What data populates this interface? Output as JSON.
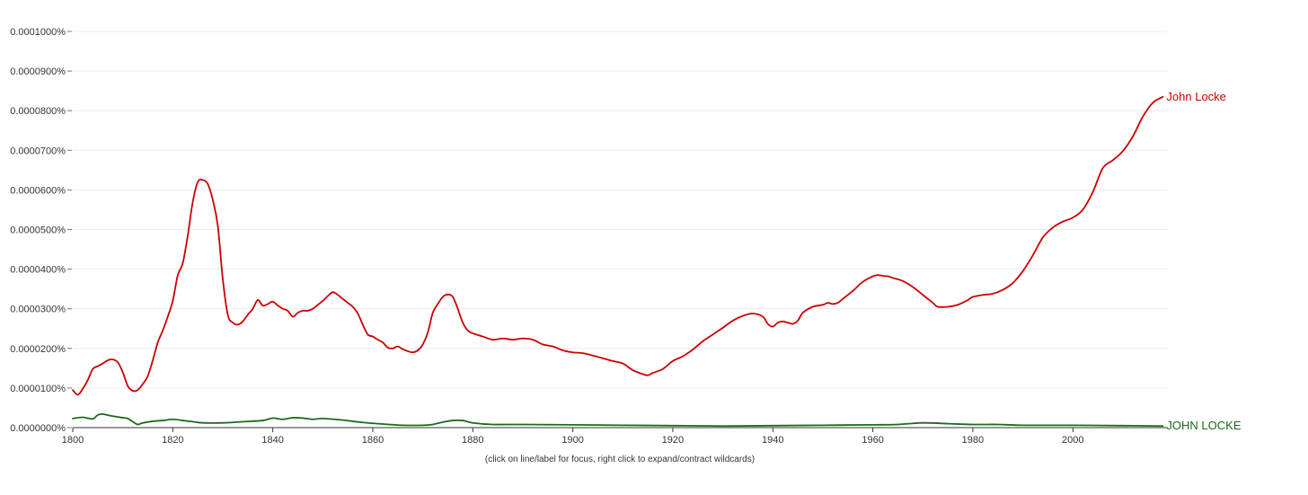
{
  "chart_data": {
    "type": "line",
    "title": "",
    "xlabel": "",
    "ylabel": "",
    "xlim": [
      1800,
      2019
    ],
    "ylim": [
      0,
      1e-06
    ],
    "x_ticks": [
      1800,
      1820,
      1840,
      1860,
      1880,
      1900,
      1920,
      1940,
      1960,
      1980,
      2000
    ],
    "y_ticks": [
      0,
      1e-07,
      2e-07,
      3e-07,
      4e-07,
      5e-07,
      6e-07,
      7e-07,
      8e-07,
      9e-07,
      1e-06
    ],
    "y_tick_labels": [
      "0.0000000%",
      "0.0000100%",
      "0.0000200%",
      "0.0000300%",
      "0.0000400%",
      "0.0000500%",
      "0.0000600%",
      "0.0000700%",
      "0.0000800%",
      "0.0000900%",
      "0.0001000%"
    ],
    "grid": true,
    "legend": "labels at line ends (right)",
    "note": "(click on line/label for focus, right click to expand/contract wildcards)",
    "series": [
      {
        "name": "John Locke",
        "color": "#cc0000",
        "points": [
          [
            1800,
            9.5e-08
          ],
          [
            1801,
            8.3e-08
          ],
          [
            1802,
            9.8e-08
          ],
          [
            1803,
            1.2e-07
          ],
          [
            1804,
            1.48e-07
          ],
          [
            1805,
            1.55e-07
          ],
          [
            1806,
            1.62e-07
          ],
          [
            1807,
            1.7e-07
          ],
          [
            1808,
            1.72e-07
          ],
          [
            1809,
            1.65e-07
          ],
          [
            1810,
            1.4e-07
          ],
          [
            1811,
            1.05e-07
          ],
          [
            1812,
            9.3e-08
          ],
          [
            1813,
            9.5e-08
          ],
          [
            1814,
            1.1e-07
          ],
          [
            1815,
            1.3e-07
          ],
          [
            1816,
            1.7e-07
          ],
          [
            1817,
            2.15e-07
          ],
          [
            1818,
            2.45e-07
          ],
          [
            1819,
            2.8e-07
          ],
          [
            1820,
            3.2e-07
          ],
          [
            1821,
            3.85e-07
          ],
          [
            1822,
            4.15e-07
          ],
          [
            1823,
            4.85e-07
          ],
          [
            1824,
            5.7e-07
          ],
          [
            1825,
            6.2e-07
          ],
          [
            1826,
            6.25e-07
          ],
          [
            1827,
            6.15e-07
          ],
          [
            1828,
            5.75e-07
          ],
          [
            1829,
            5.1e-07
          ],
          [
            1830,
            3.75e-07
          ],
          [
            1831,
            2.85e-07
          ],
          [
            1832,
            2.65e-07
          ],
          [
            1833,
            2.6e-07
          ],
          [
            1834,
            2.68e-07
          ],
          [
            1835,
            2.85e-07
          ],
          [
            1836,
            3e-07
          ],
          [
            1837,
            3.22e-07
          ],
          [
            1838,
            3.08e-07
          ],
          [
            1839,
            3.12e-07
          ],
          [
            1840,
            3.18e-07
          ],
          [
            1841,
            3.08e-07
          ],
          [
            1842,
            3e-07
          ],
          [
            1843,
            2.95e-07
          ],
          [
            1844,
            2.8e-07
          ],
          [
            1845,
            2.9e-07
          ],
          [
            1846,
            2.95e-07
          ],
          [
            1847,
            2.95e-07
          ],
          [
            1848,
            3e-07
          ],
          [
            1849,
            3.1e-07
          ],
          [
            1850,
            3.2e-07
          ],
          [
            1851,
            3.32e-07
          ],
          [
            1852,
            3.42e-07
          ],
          [
            1853,
            3.35e-07
          ],
          [
            1854,
            3.25e-07
          ],
          [
            1855,
            3.15e-07
          ],
          [
            1856,
            3.05e-07
          ],
          [
            1857,
            2.88e-07
          ],
          [
            1858,
            2.6e-07
          ],
          [
            1859,
            2.35e-07
          ],
          [
            1860,
            2.3e-07
          ],
          [
            1861,
            2.22e-07
          ],
          [
            1862,
            2.15e-07
          ],
          [
            1863,
            2.02e-07
          ],
          [
            1864,
            2e-07
          ],
          [
            1865,
            2.05e-07
          ],
          [
            1866,
            1.98e-07
          ],
          [
            1867,
            1.93e-07
          ],
          [
            1868,
            1.9e-07
          ],
          [
            1869,
            1.95e-07
          ],
          [
            1870,
            2.1e-07
          ],
          [
            1871,
            2.4e-07
          ],
          [
            1872,
            2.9e-07
          ],
          [
            1873,
            3.12e-07
          ],
          [
            1874,
            3.3e-07
          ],
          [
            1875,
            3.36e-07
          ],
          [
            1876,
            3.3e-07
          ],
          [
            1877,
            3e-07
          ],
          [
            1878,
            2.65e-07
          ],
          [
            1879,
            2.45e-07
          ],
          [
            1880,
            2.38e-07
          ],
          [
            1882,
            2.3e-07
          ],
          [
            1884,
            2.22e-07
          ],
          [
            1886,
            2.25e-07
          ],
          [
            1888,
            2.22e-07
          ],
          [
            1890,
            2.25e-07
          ],
          [
            1892,
            2.22e-07
          ],
          [
            1894,
            2.1e-07
          ],
          [
            1896,
            2.05e-07
          ],
          [
            1898,
            1.95e-07
          ],
          [
            1900,
            1.9e-07
          ],
          [
            1902,
            1.88e-07
          ],
          [
            1904,
            1.82e-07
          ],
          [
            1906,
            1.75e-07
          ],
          [
            1908,
            1.68e-07
          ],
          [
            1910,
            1.62e-07
          ],
          [
            1912,
            1.45e-07
          ],
          [
            1914,
            1.35e-07
          ],
          [
            1915,
            1.32e-07
          ],
          [
            1916,
            1.38e-07
          ],
          [
            1918,
            1.48e-07
          ],
          [
            1920,
            1.68e-07
          ],
          [
            1922,
            1.8e-07
          ],
          [
            1924,
            1.97e-07
          ],
          [
            1926,
            2.18e-07
          ],
          [
            1928,
            2.35e-07
          ],
          [
            1930,
            2.52e-07
          ],
          [
            1932,
            2.7e-07
          ],
          [
            1934,
            2.82e-07
          ],
          [
            1936,
            2.88e-07
          ],
          [
            1938,
            2.8e-07
          ],
          [
            1939,
            2.62e-07
          ],
          [
            1940,
            2.55e-07
          ],
          [
            1941,
            2.65e-07
          ],
          [
            1942,
            2.68e-07
          ],
          [
            1943,
            2.65e-07
          ],
          [
            1944,
            2.62e-07
          ],
          [
            1945,
            2.7e-07
          ],
          [
            1946,
            2.9e-07
          ],
          [
            1948,
            3.05e-07
          ],
          [
            1950,
            3.1e-07
          ],
          [
            1951,
            3.15e-07
          ],
          [
            1952,
            3.12e-07
          ],
          [
            1953,
            3.15e-07
          ],
          [
            1954,
            3.25e-07
          ],
          [
            1956,
            3.45e-07
          ],
          [
            1958,
            3.68e-07
          ],
          [
            1960,
            3.82e-07
          ],
          [
            1961,
            3.85e-07
          ],
          [
            1962,
            3.83e-07
          ],
          [
            1963,
            3.82e-07
          ],
          [
            1964,
            3.78e-07
          ],
          [
            1966,
            3.7e-07
          ],
          [
            1968,
            3.55e-07
          ],
          [
            1970,
            3.35e-07
          ],
          [
            1972,
            3.15e-07
          ],
          [
            1973,
            3.05e-07
          ],
          [
            1975,
            3.05e-07
          ],
          [
            1977,
            3.1e-07
          ],
          [
            1979,
            3.22e-07
          ],
          [
            1980,
            3.3e-07
          ],
          [
            1982,
            3.35e-07
          ],
          [
            1984,
            3.38e-07
          ],
          [
            1986,
            3.48e-07
          ],
          [
            1988,
            3.65e-07
          ],
          [
            1990,
            3.95e-07
          ],
          [
            1992,
            4.35e-07
          ],
          [
            1994,
            4.8e-07
          ],
          [
            1996,
            5.05e-07
          ],
          [
            1998,
            5.2e-07
          ],
          [
            2000,
            5.3e-07
          ],
          [
            2002,
            5.5e-07
          ],
          [
            2004,
            5.95e-07
          ],
          [
            2006,
            6.55e-07
          ],
          [
            2008,
            6.75e-07
          ],
          [
            2010,
            6.98e-07
          ],
          [
            2012,
            7.35e-07
          ],
          [
            2014,
            7.85e-07
          ],
          [
            2016,
            8.2e-07
          ],
          [
            2018,
            8.35e-07
          ]
        ]
      },
      {
        "name": "JOHN LOCKE",
        "color": "#1a6b1a",
        "points": [
          [
            1800,
            2.3e-08
          ],
          [
            1802,
            2.6e-08
          ],
          [
            1804,
            2.2e-08
          ],
          [
            1805,
            3.2e-08
          ],
          [
            1806,
            3.4e-08
          ],
          [
            1808,
            2.9e-08
          ],
          [
            1810,
            2.5e-08
          ],
          [
            1811,
            2.3e-08
          ],
          [
            1812,
            1.5e-08
          ],
          [
            1813,
            8e-09
          ],
          [
            1814,
            1.2e-08
          ],
          [
            1816,
            1.6e-08
          ],
          [
            1818,
            1.8e-08
          ],
          [
            1820,
            2.1e-08
          ],
          [
            1822,
            1.8e-08
          ],
          [
            1824,
            1.5e-08
          ],
          [
            1826,
            1.2e-08
          ],
          [
            1830,
            1.2e-08
          ],
          [
            1834,
            1.5e-08
          ],
          [
            1838,
            1.8e-08
          ],
          [
            1840,
            2.4e-08
          ],
          [
            1842,
            2.1e-08
          ],
          [
            1844,
            2.5e-08
          ],
          [
            1846,
            2.4e-08
          ],
          [
            1848,
            2.1e-08
          ],
          [
            1850,
            2.3e-08
          ],
          [
            1854,
            1.9e-08
          ],
          [
            1858,
            1.3e-08
          ],
          [
            1862,
            9e-09
          ],
          [
            1866,
            6e-09
          ],
          [
            1870,
            6e-09
          ],
          [
            1872,
            8e-09
          ],
          [
            1874,
            1.4e-08
          ],
          [
            1876,
            1.8e-08
          ],
          [
            1878,
            1.8e-08
          ],
          [
            1880,
            1.2e-08
          ],
          [
            1884,
            8e-09
          ],
          [
            1890,
            8e-09
          ],
          [
            1900,
            7e-09
          ],
          [
            1910,
            6e-09
          ],
          [
            1920,
            5e-09
          ],
          [
            1930,
            4e-09
          ],
          [
            1940,
            5e-09
          ],
          [
            1950,
            6e-09
          ],
          [
            1960,
            7e-09
          ],
          [
            1965,
            8e-09
          ],
          [
            1970,
            1.2e-08
          ],
          [
            1975,
            1e-08
          ],
          [
            1980,
            8e-09
          ],
          [
            1985,
            8e-09
          ],
          [
            1990,
            6e-09
          ],
          [
            2000,
            6e-09
          ],
          [
            2010,
            5e-09
          ],
          [
            2018,
            4e-09
          ]
        ]
      }
    ]
  }
}
